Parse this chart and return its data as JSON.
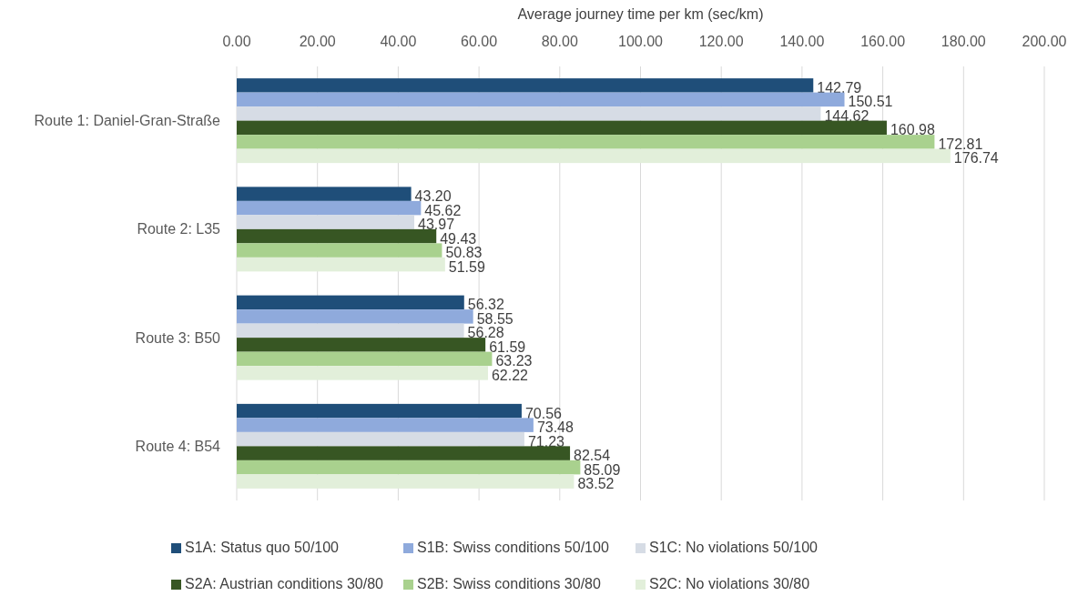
{
  "chart_data": {
    "type": "bar",
    "orientation": "horizontal",
    "xlabel": "Average journey time per km (sec/km)",
    "categories": [
      "Route 1: Daniel-Gran-Straße",
      "Route 2: L35",
      "Route 3: B50",
      "Route 4: B54"
    ],
    "xlim": [
      0,
      200
    ],
    "xticks": [
      {
        "value": 0,
        "label": "0.00"
      },
      {
        "value": 20,
        "label": "20.00"
      },
      {
        "value": 40,
        "label": "40.00"
      },
      {
        "value": 60,
        "label": "60.00"
      },
      {
        "value": 80,
        "label": "80.00"
      },
      {
        "value": 100,
        "label": "100.00"
      },
      {
        "value": 120,
        "label": "120.00"
      },
      {
        "value": 140,
        "label": "140.00"
      },
      {
        "value": 160,
        "label": "160.00"
      },
      {
        "value": 180,
        "label": "180.00"
      },
      {
        "value": 200,
        "label": "200.00"
      }
    ],
    "grid": "x",
    "legend": "bottom",
    "series": [
      {
        "name": "S1A: Status quo 50/100",
        "color": "#1f4e79",
        "values": [
          142.79,
          43.2,
          56.32,
          70.56
        ],
        "value_labels": [
          "142.79",
          "43.20",
          "56.32",
          "70.56"
        ]
      },
      {
        "name": "S1B: Swiss conditions 50/100",
        "color": "#8faadc",
        "values": [
          150.51,
          45.62,
          58.55,
          73.48
        ],
        "value_labels": [
          "150.51",
          "45.62",
          "58.55",
          "73.48"
        ]
      },
      {
        "name": "S1C: No violations 50/100",
        "color": "#d6dce5",
        "values": [
          144.62,
          43.97,
          56.28,
          71.23
        ],
        "value_labels": [
          "144.62",
          "43.97",
          "56.28",
          "71.23"
        ]
      },
      {
        "name": "S2A: Austrian conditions 30/80",
        "color": "#375623",
        "values": [
          160.98,
          49.43,
          61.59,
          82.54
        ],
        "value_labels": [
          "160.98",
          "49.43",
          "61.59",
          "82.54"
        ]
      },
      {
        "name": "S2B: Swiss conditions 30/80",
        "color": "#a9d18e",
        "values": [
          172.81,
          50.83,
          63.23,
          85.09
        ],
        "value_labels": [
          "172.81",
          "50.83",
          "63.23",
          "85.09"
        ]
      },
      {
        "name": "S2C: No violations 30/80",
        "color": "#e2efda",
        "values": [
          176.74,
          51.59,
          62.22,
          83.52
        ],
        "value_labels": [
          "176.74",
          "51.59",
          "62.22",
          "83.52"
        ]
      }
    ]
  }
}
